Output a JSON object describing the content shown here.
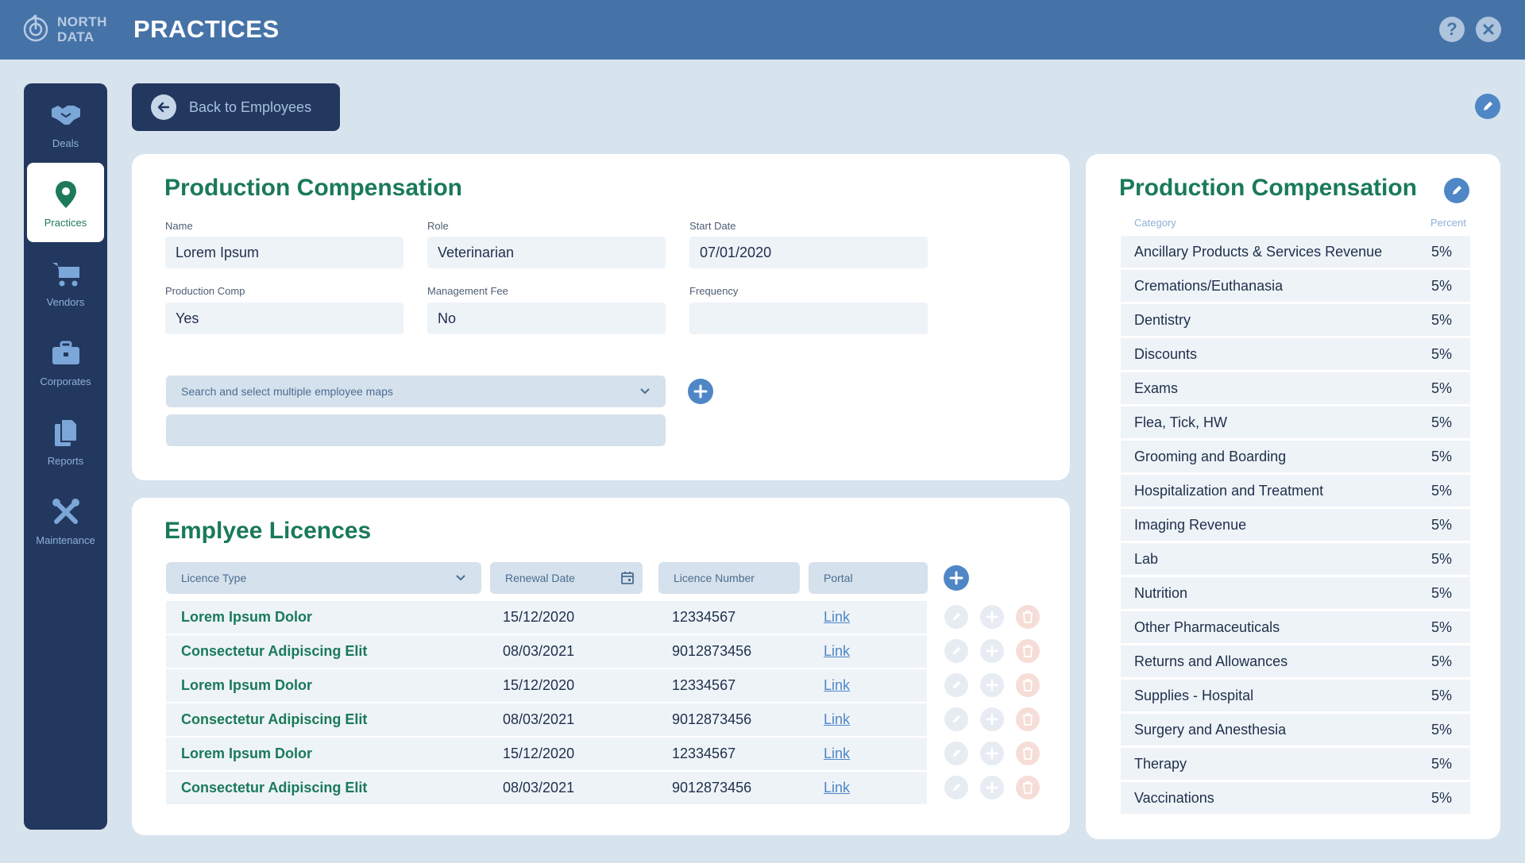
{
  "header": {
    "logo_line1": "NORTH",
    "logo_line2": "DATA",
    "title": "PRACTICES",
    "help_icon": "question-icon",
    "close_icon": "close-icon"
  },
  "sidebar": {
    "items": [
      {
        "label": "Deals",
        "icon": "handshake-icon"
      },
      {
        "label": "Practices",
        "icon": "map-pin-icon",
        "active": true
      },
      {
        "label": "Vendors",
        "icon": "cart-icon"
      },
      {
        "label": "Corporates",
        "icon": "briefcase-icon"
      },
      {
        "label": "Reports",
        "icon": "documents-icon"
      },
      {
        "label": "Maintenance",
        "icon": "tools-icon"
      }
    ]
  },
  "back_button": {
    "label": "Back to Employees"
  },
  "production_comp": {
    "title": "Production Compensation",
    "fields": {
      "name": {
        "label": "Name",
        "value": "Lorem Ipsum"
      },
      "role": {
        "label": "Role",
        "value": "Veterinarian"
      },
      "start_date": {
        "label": "Start Date",
        "value": "07/01/2020"
      },
      "production_comp": {
        "label": "Production Comp",
        "value": "Yes"
      },
      "management_fee": {
        "label": "Management Fee",
        "value": "No"
      },
      "frequency": {
        "label": "Frequency",
        "value": ""
      }
    },
    "employee_maps_placeholder": "Search and select multiple employee maps",
    "employee_maps_value": ""
  },
  "licences": {
    "title": "Emplyee Licences",
    "filters": {
      "licence_type": "Licence Type",
      "renewal_date": "Renewal Date",
      "licence_number": "Licence Number",
      "portal": "Portal"
    },
    "rows": [
      {
        "type": "Lorem Ipsum Dolor",
        "date": "15/12/2020",
        "number": "12334567",
        "link": "Link"
      },
      {
        "type": "Consectetur Adipiscing Elit",
        "date": "08/03/2021",
        "number": "9012873456",
        "link": "Link"
      },
      {
        "type": "Lorem Ipsum Dolor",
        "date": "15/12/2020",
        "number": "12334567",
        "link": "Link"
      },
      {
        "type": "Consectetur Adipiscing Elit",
        "date": "08/03/2021",
        "number": "9012873456",
        "link": "Link"
      },
      {
        "type": "Lorem Ipsum Dolor",
        "date": "15/12/2020",
        "number": "12334567",
        "link": "Link"
      },
      {
        "type": "Consectetur Adipiscing Elit",
        "date": "08/03/2021",
        "number": "9012873456",
        "link": "Link"
      }
    ]
  },
  "comp_table": {
    "title": "Production Compensation",
    "header_category": "Category",
    "header_percent": "Percent",
    "rows": [
      {
        "category": "Ancillary Products & Services Revenue",
        "percent": "5%"
      },
      {
        "category": "Cremations/Euthanasia",
        "percent": "5%"
      },
      {
        "category": "Dentistry",
        "percent": "5%"
      },
      {
        "category": "Discounts",
        "percent": "5%"
      },
      {
        "category": "Exams",
        "percent": "5%"
      },
      {
        "category": "Flea, Tick, HW",
        "percent": "5%"
      },
      {
        "category": "Grooming and Boarding",
        "percent": "5%"
      },
      {
        "category": "Hospitalization and Treatment",
        "percent": "5%"
      },
      {
        "category": "Imaging Revenue",
        "percent": "5%"
      },
      {
        "category": "Lab",
        "percent": "5%"
      },
      {
        "category": "Nutrition",
        "percent": "5%"
      },
      {
        "category": "Other Pharmaceuticals",
        "percent": "5%"
      },
      {
        "category": "Returns and Allowances",
        "percent": "5%"
      },
      {
        "category": "Supplies - Hospital",
        "percent": "5%"
      },
      {
        "category": "Surgery and Anesthesia",
        "percent": "5%"
      },
      {
        "category": "Therapy",
        "percent": "5%"
      },
      {
        "category": "Vaccinations",
        "percent": "5%"
      }
    ]
  },
  "colors": {
    "header": "#4573a8",
    "sidebar": "#23385f",
    "accent_green": "#1a7a58",
    "accent_blue": "#4f86c6",
    "background": "#d7e3ed"
  }
}
